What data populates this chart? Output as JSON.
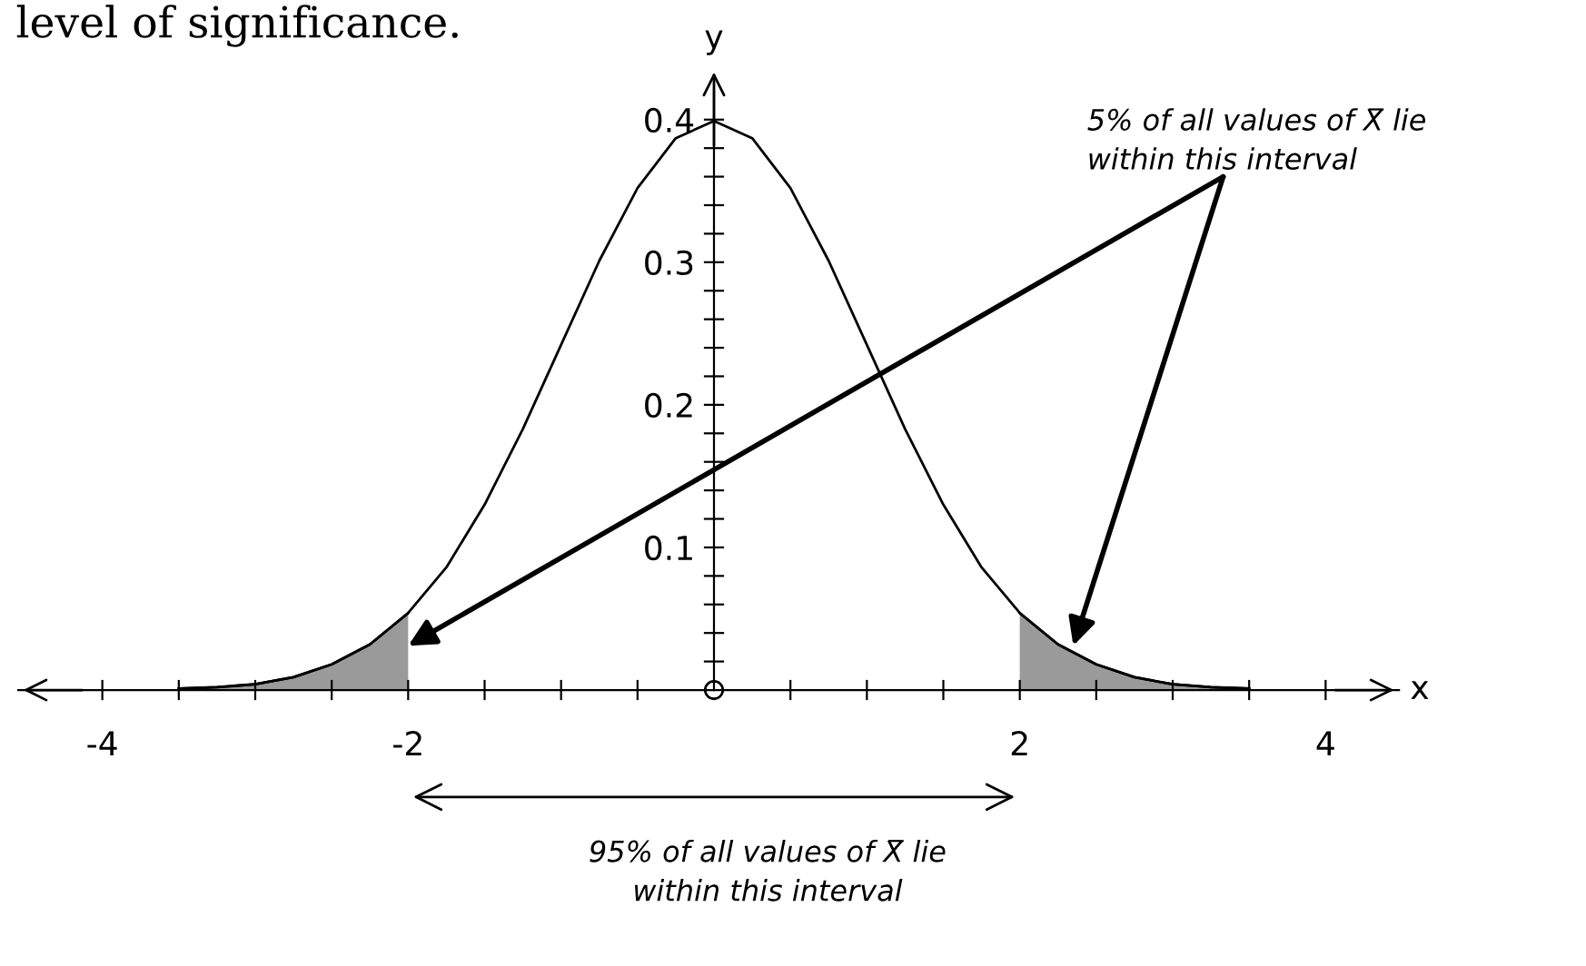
{
  "chart_data": {
    "type": "line",
    "xlabel": "x",
    "ylabel": "y",
    "series": [
      {
        "color": "#000000",
        "x": [
          -3.5,
          -3.25,
          -3,
          -2.75,
          -2.5,
          -2.25,
          -2,
          -1.75,
          -1.5,
          -1.25,
          -1,
          -0.75,
          -0.5,
          -0.25,
          0,
          0.25,
          0.5,
          0.75,
          1,
          1.25,
          1.5,
          1.75,
          2,
          2.25,
          2.5,
          2.75,
          3,
          3.25,
          3.5
        ],
        "values": [
          0.001,
          0.002,
          0.004,
          0.009,
          0.018,
          0.032,
          0.054,
          0.086,
          0.13,
          0.183,
          0.242,
          0.301,
          0.352,
          0.387,
          0.399,
          0.387,
          0.352,
          0.301,
          0.242,
          0.183,
          0.13,
          0.086,
          0.054,
          0.032,
          0.018,
          0.009,
          0.004,
          0.002,
          0.001
        ]
      },
      {
        "type": "area",
        "color": "#9a9a9a",
        "x": [
          -3.5,
          -3.25,
          -3,
          -2.75,
          -2.5,
          -2.25,
          -2
        ],
        "values": [
          0.001,
          0.002,
          0.004,
          0.009,
          0.018,
          0.032,
          0.054
        ]
      },
      {
        "type": "area",
        "color": "#9a9a9a",
        "x": [
          2,
          2.25,
          2.5,
          2.75,
          3,
          3.25,
          3.5
        ],
        "values": [
          0.054,
          0.032,
          0.018,
          0.009,
          0.004,
          0.002,
          0.001
        ]
      }
    ],
    "xlim": [
      -4.55,
      4.48
    ],
    "ylim": [
      0,
      0.42
    ],
    "xticks": [
      -4,
      {
        "value": -3.5,
        "label": null
      },
      {
        "value": -3,
        "label": null
      },
      {
        "value": -2.5,
        "label": null
      },
      -2,
      {
        "value": -1.5,
        "label": null
      },
      {
        "value": -1,
        "label": null
      },
      {
        "value": -0.5,
        "label": null
      },
      {
        "value": 0.5,
        "label": null
      },
      {
        "value": 1,
        "label": null
      },
      {
        "value": 1.5,
        "label": null
      },
      2,
      {
        "value": 2.5,
        "label": null
      },
      {
        "value": 3,
        "label": null
      },
      {
        "value": 3.5,
        "label": null
      },
      4
    ],
    "yticks": [
      {
        "value": 0.02,
        "label": null
      },
      {
        "value": 0.04,
        "label": null
      },
      {
        "value": 0.06,
        "label": null
      },
      {
        "value": 0.08,
        "label": null
      },
      0.1,
      {
        "value": 0.12,
        "label": null
      },
      {
        "value": 0.14,
        "label": null
      },
      {
        "value": 0.16,
        "label": null
      },
      {
        "value": 0.18,
        "label": null
      },
      0.2,
      {
        "value": 0.22,
        "label": null
      },
      {
        "value": 0.24,
        "label": null
      },
      {
        "value": 0.26,
        "label": null
      },
      {
        "value": 0.28,
        "label": null
      },
      0.3,
      {
        "value": 0.32,
        "label": null
      },
      {
        "value": 0.34,
        "label": null
      },
      {
        "value": 0.36,
        "label": null
      },
      {
        "value": 0.38,
        "label": null
      },
      0.4
    ],
    "annotations": [
      "level of significance.",
      {
        "text": "5% of all values of X̅ lie\nwithin this interval",
        "x": 2.35,
        "y": 0.031
      },
      "95% of all values of X̅ lie\nwithin this interval"
    ],
    "grid": false
  }
}
